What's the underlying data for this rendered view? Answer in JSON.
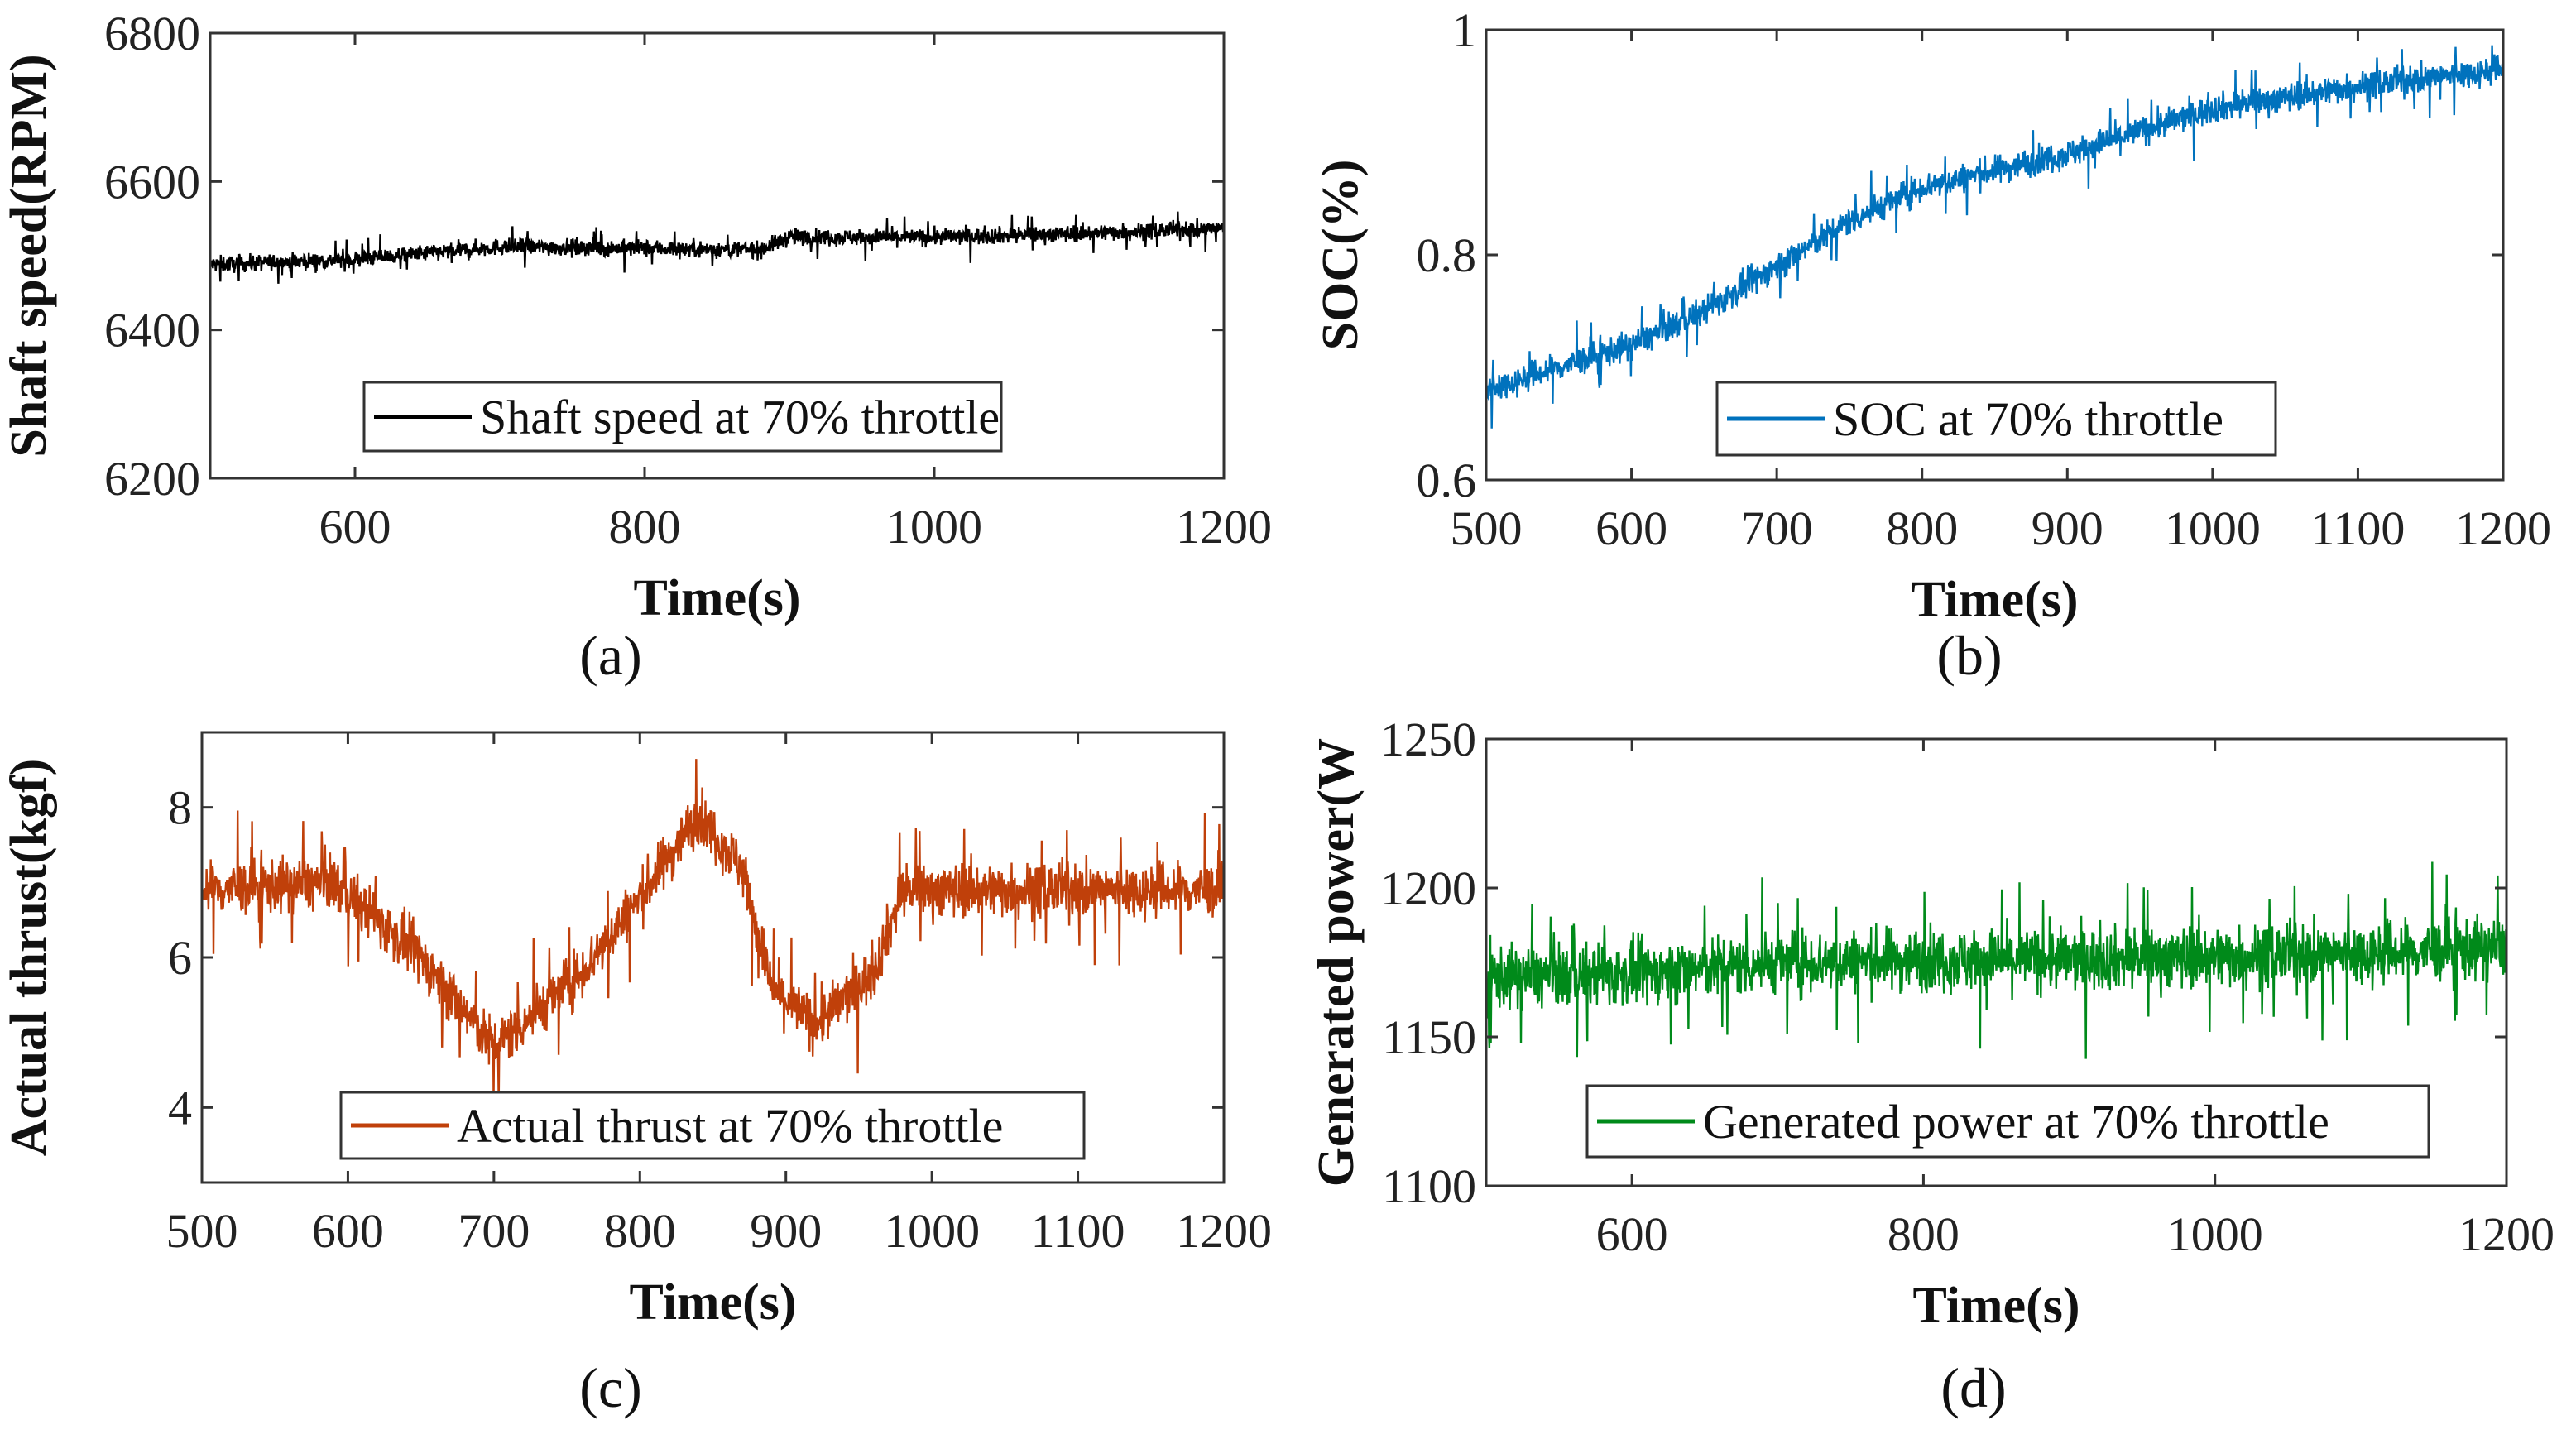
{
  "chart_data": [
    {
      "type": "line",
      "panel_label": "(a)",
      "xlabel": "Time(s)",
      "ylabel": "Shaft speed(RPM)",
      "xlim": [
        500,
        1200
      ],
      "ylim": [
        6200,
        6800
      ],
      "xticks": [
        600,
        800,
        1000,
        1200
      ],
      "yticks": [
        6200,
        6400,
        6600,
        6800
      ],
      "legend": "Shaft speed at 70% throttle",
      "legend_position": "bottom-center",
      "color": "#000000",
      "series": [
        {
          "name": "Shaft speed at 70% throttle",
          "x": [
            500,
            600,
            700,
            800,
            880,
            900,
            1000,
            1100,
            1200
          ],
          "y": [
            6488,
            6495,
            6512,
            6510,
            6508,
            6525,
            6525,
            6530,
            6537
          ],
          "noise": 14
        }
      ]
    },
    {
      "type": "line",
      "panel_label": "(b)",
      "xlabel": "Time(s)",
      "ylabel": "SOC(%)",
      "xlim": [
        500,
        1200
      ],
      "ylim": [
        0.6,
        1.0
      ],
      "xticks": [
        500,
        600,
        700,
        800,
        900,
        1000,
        1100,
        1200
      ],
      "yticks": [
        0.6,
        0.8,
        1
      ],
      "legend": "SOC at 70% throttle",
      "legend_position": "bottom-center",
      "color": "#0072BD",
      "series": [
        {
          "name": "SOC at 70% throttle",
          "x": [
            500,
            600,
            650,
            700,
            750,
            800,
            900,
            1000,
            1100,
            1200
          ],
          "y": [
            0.68,
            0.72,
            0.75,
            0.79,
            0.83,
            0.86,
            0.89,
            0.93,
            0.95,
            0.965
          ],
          "noise": 0.016
        }
      ]
    },
    {
      "type": "line",
      "panel_label": "(c)",
      "xlabel": "Time(s)",
      "ylabel": "Actual thrust(kgf)",
      "xlim": [
        500,
        1200
      ],
      "ylim": [
        3,
        9
      ],
      "xticks": [
        500,
        600,
        700,
        800,
        900,
        1000,
        1100,
        1200
      ],
      "yticks": [
        4,
        6,
        8
      ],
      "legend": "Actual thrust at 70% throttle",
      "legend_position": "bottom-center",
      "color": "#C0400A",
      "series": [
        {
          "name": "Actual thrust at 70% throttle",
          "x": [
            500,
            590,
            650,
            700,
            760,
            800,
            840,
            870,
            890,
            920,
            960,
            980,
            1200
          ],
          "y": [
            6.9,
            7.0,
            6.0,
            4.8,
            5.8,
            6.8,
            7.9,
            7.2,
            5.6,
            5.1,
            5.8,
            6.9,
            6.9
          ],
          "noise": 0.45
        }
      ]
    },
    {
      "type": "line",
      "panel_label": "(d)",
      "xlabel": "Time(s)",
      "ylabel": "Generated power(W",
      "xlim": [
        500,
        1200
      ],
      "ylim": [
        1100,
        1250
      ],
      "xticks": [
        600,
        800,
        1000,
        1200
      ],
      "yticks": [
        1100,
        1150,
        1200,
        1250
      ],
      "legend": "Generated power at 70% throttle",
      "legend_position": "bottom-center",
      "color": "#008A1A",
      "series": [
        {
          "name": "Generated power at 70% throttle",
          "x": [
            500,
            600,
            700,
            800,
            900,
            1000,
            1100,
            1200
          ],
          "y": [
            1170,
            1171,
            1175,
            1176,
            1176,
            1177,
            1178,
            1180
          ],
          "noise": 13
        }
      ]
    }
  ]
}
